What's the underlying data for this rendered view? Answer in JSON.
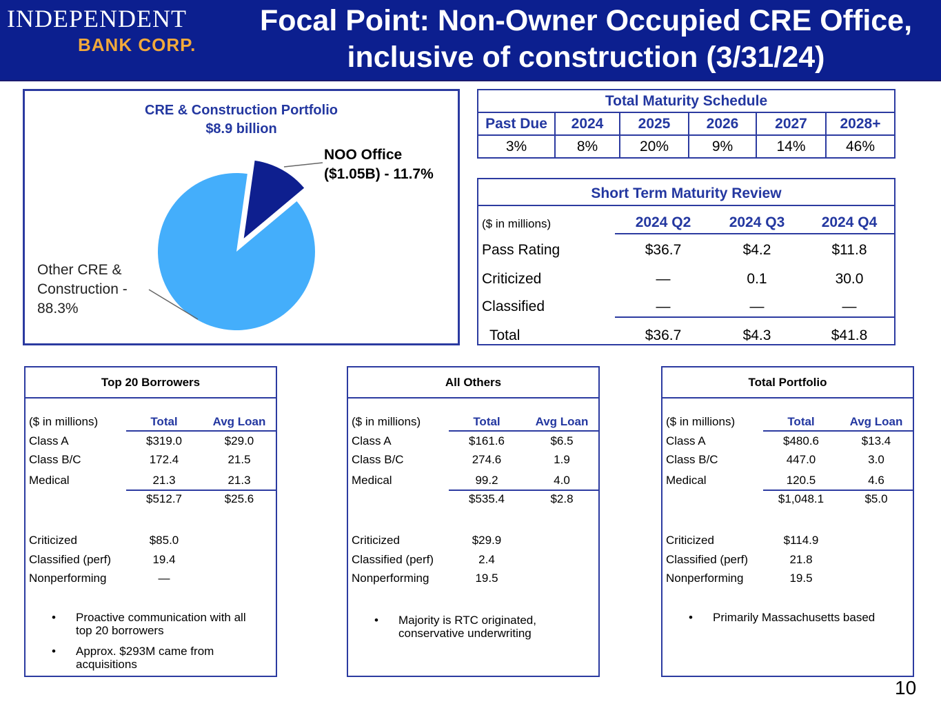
{
  "header": {
    "logo_line1": "INDEPENDENT",
    "logo_line2": "BANK CORP.",
    "title_line1": "Focal Point: Non-Owner Occupied CRE Office,",
    "title_line2": "inclusive of construction (3/31/24)"
  },
  "colors": {
    "header_bg": "#0c1f8f",
    "accent": "#2337a0",
    "logo_gold": "#f2a93b",
    "pie_large": "#44aefb",
    "pie_small": "#0e1f8f"
  },
  "chart_data": {
    "type": "pie",
    "title": "CRE & Construction Portfolio",
    "subtitle": "$8.9 billion",
    "slices": [
      {
        "label_line1": "NOO Office",
        "label_line2": "($1.05B) - 11.7%",
        "value": 11.7
      },
      {
        "label_line1": "Other CRE &",
        "label_line2": "Construction -",
        "label_line3": "88.3%",
        "value": 88.3
      }
    ]
  },
  "maturity": {
    "title": "Total Maturity Schedule",
    "headers": [
      "Past Due",
      "2024",
      "2025",
      "2026",
      "2027",
      "2028+"
    ],
    "values": [
      "3%",
      "8%",
      "20%",
      "9%",
      "14%",
      "46%"
    ]
  },
  "short_term": {
    "title": "Short Term Maturity Review",
    "unit": "($ in millions)",
    "cols": [
      "2024 Q2",
      "2024 Q3",
      "2024 Q4"
    ],
    "rows": [
      {
        "label": "Pass Rating",
        "values": [
          "$36.7",
          "$4.2",
          "$11.8"
        ]
      },
      {
        "label": "Criticized",
        "values": [
          "—",
          "0.1",
          "30.0"
        ]
      },
      {
        "label": "Classified",
        "values": [
          "—",
          "—",
          "—"
        ]
      },
      {
        "label": "Total",
        "values": [
          "$36.7",
          "$4.3",
          "$41.8"
        ]
      }
    ]
  },
  "panels": [
    {
      "title": "Top 20 Borrowers",
      "unit": "($ in millions)",
      "col1": "Total",
      "col2": "Avg Loan",
      "rows": [
        {
          "label": "Class A",
          "total": "$319.0",
          "avg": "$29.0"
        },
        {
          "label": "Class B/C",
          "total": "172.4",
          "avg": "21.5"
        },
        {
          "label": "Medical",
          "total": "21.3",
          "avg": "21.3"
        }
      ],
      "subtotal": {
        "total": "$512.7",
        "avg": "$25.6"
      },
      "quality": [
        {
          "label": "Criticized",
          "value": "$85.0"
        },
        {
          "label": "Classified (perf)",
          "value": "19.4"
        },
        {
          "label": "Nonperforming",
          "value": "—"
        }
      ],
      "bullets": [
        {
          "line1": "Proactive communication with all",
          "line2": "top 20 borrowers"
        },
        {
          "line1": "Approx. $293M came from",
          "line2": "acquisitions"
        }
      ]
    },
    {
      "title": "All Others",
      "unit": "($ in millions)",
      "col1": "Total",
      "col2": "Avg Loan",
      "rows": [
        {
          "label": "Class A",
          "total": "$161.6",
          "avg": "$6.5"
        },
        {
          "label": "Class B/C",
          "total": "274.6",
          "avg": "1.9"
        },
        {
          "label": "Medical",
          "total": "99.2",
          "avg": "4.0"
        }
      ],
      "subtotal": {
        "total": "$535.4",
        "avg": "$2.8"
      },
      "quality": [
        {
          "label": "Criticized",
          "value": "$29.9"
        },
        {
          "label": "Classified (perf)",
          "value": "2.4"
        },
        {
          "label": "Nonperforming",
          "value": "19.5"
        }
      ],
      "bullets": [
        {
          "line1": "Majority is RTC originated,",
          "line2": "conservative underwriting"
        }
      ]
    },
    {
      "title": "Total Portfolio",
      "unit": "($ in millions)",
      "col1": "Total",
      "col2": "Avg Loan",
      "rows": [
        {
          "label": "Class A",
          "total": "$480.6",
          "avg": "$13.4"
        },
        {
          "label": "Class B/C",
          "total": "447.0",
          "avg": "3.0"
        },
        {
          "label": "Medical",
          "total": "120.5",
          "avg": "4.6"
        }
      ],
      "subtotal": {
        "total": "$1,048.1",
        "avg": "$5.0"
      },
      "quality": [
        {
          "label": "Criticized",
          "value": "$114.9"
        },
        {
          "label": "Classified (perf)",
          "value": "21.8"
        },
        {
          "label": "Nonperforming",
          "value": "19.5"
        }
      ],
      "bullets": [
        {
          "line1": "Primarily Massachusetts based",
          "line2": ""
        }
      ]
    }
  ],
  "page_number": "10"
}
